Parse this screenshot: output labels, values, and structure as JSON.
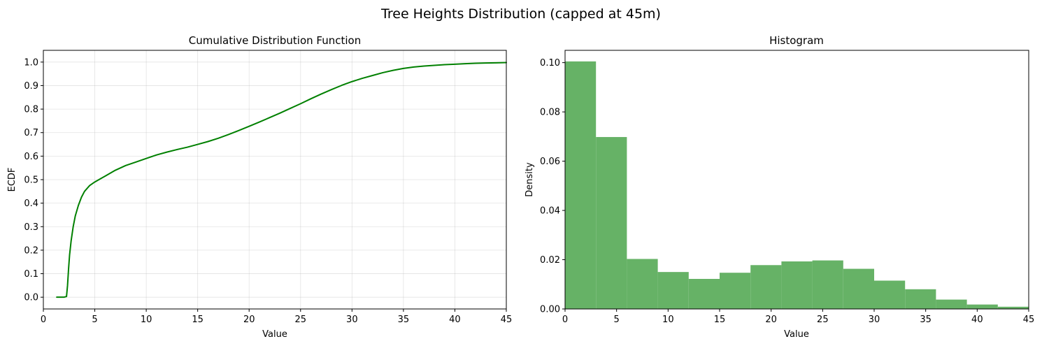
{
  "figure": {
    "title": "Tree Heights Distribution (capped at 45m)"
  },
  "colors": {
    "ecdf_line": "#008000",
    "hist_bar": "#66b266",
    "grid": "#b0b0b0"
  },
  "chart_data": [
    {
      "type": "line",
      "title": "Cumulative Distribution Function",
      "xlabel": "Value",
      "ylabel": "ECDF",
      "xlim": [
        0,
        45
      ],
      "ylim": [
        -0.05,
        1.05
      ],
      "xticks": [
        0,
        5,
        10,
        15,
        20,
        25,
        30,
        35,
        40,
        45
      ],
      "yticks": [
        0.0,
        0.1,
        0.2,
        0.3,
        0.4,
        0.5,
        0.6,
        0.7,
        0.8,
        0.9,
        1.0
      ],
      "grid": true,
      "series": [
        {
          "x": [
            1.3,
            2.0,
            2.25,
            2.35,
            2.45,
            2.55,
            2.7,
            2.9,
            3.1,
            3.4,
            3.7,
            4.0,
            4.5,
            5.0,
            6.0,
            7.0,
            8.0,
            9.0,
            10.0,
            11.0,
            12.0,
            13.0,
            14.0,
            15.0,
            16.0,
            17.0,
            18.0,
            19.0,
            20.0,
            21.0,
            22.0,
            23.0,
            24.0,
            25.0,
            26.0,
            27.0,
            28.0,
            29.0,
            30.0,
            31.0,
            32.0,
            33.0,
            34.0,
            35.0,
            36.0,
            37.0,
            38.0,
            39.0,
            40.0,
            41.0,
            42.0,
            43.0,
            44.0,
            45.0
          ],
          "y": [
            0.0,
            0.0,
            0.003,
            0.05,
            0.12,
            0.18,
            0.24,
            0.3,
            0.345,
            0.39,
            0.425,
            0.45,
            0.475,
            0.49,
            0.515,
            0.54,
            0.56,
            0.575,
            0.59,
            0.605,
            0.617,
            0.628,
            0.638,
            0.65,
            0.662,
            0.676,
            0.692,
            0.709,
            0.727,
            0.745,
            0.764,
            0.783,
            0.803,
            0.823,
            0.844,
            0.864,
            0.883,
            0.901,
            0.917,
            0.931,
            0.943,
            0.955,
            0.965,
            0.973,
            0.979,
            0.983,
            0.986,
            0.989,
            0.991,
            0.993,
            0.995,
            0.996,
            0.997,
            0.998
          ]
        }
      ]
    },
    {
      "type": "bar",
      "title": "Histogram",
      "xlabel": "Value",
      "ylabel": "Density",
      "xlim": [
        0,
        45
      ],
      "ylim": [
        0,
        0.105
      ],
      "xticks": [
        0,
        5,
        10,
        15,
        20,
        25,
        30,
        35,
        40,
        45
      ],
      "yticks": [
        0.0,
        0.02,
        0.04,
        0.06,
        0.08,
        0.1
      ],
      "ytick_labels": [
        "0.00",
        "0.02",
        "0.04",
        "0.06",
        "0.08",
        "0.10"
      ],
      "grid": false,
      "bin_edges": [
        0,
        3,
        6,
        9,
        12,
        15,
        18,
        21,
        24,
        27,
        30,
        33,
        36,
        39,
        42,
        45
      ],
      "values": [
        0.1005,
        0.0698,
        0.0203,
        0.015,
        0.0122,
        0.0147,
        0.0178,
        0.0193,
        0.0197,
        0.0163,
        0.0115,
        0.008,
        0.0038,
        0.0018,
        0.0009
      ]
    }
  ]
}
